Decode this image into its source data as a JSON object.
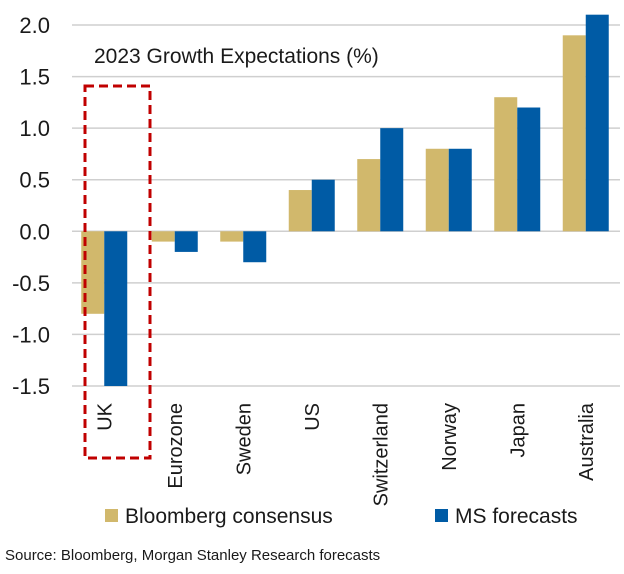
{
  "chart_data": {
    "type": "bar",
    "title": "2023 Growth Expectations (%)",
    "categories": [
      "UK",
      "Eurozone",
      "Sweden",
      "US",
      "Switzerland",
      "Norway",
      "Japan",
      "Australia"
    ],
    "series": [
      {
        "name": "Bloomberg consensus",
        "color": "#D1B86C",
        "values": [
          -0.8,
          -0.1,
          -0.1,
          0.4,
          0.7,
          0.8,
          1.3,
          1.9
        ]
      },
      {
        "name": "MS forecasts",
        "color": "#005BA5",
        "values": [
          -1.5,
          -0.2,
          -0.3,
          0.5,
          1.0,
          0.8,
          1.2,
          2.1
        ]
      }
    ],
    "ylim": [
      -1.5,
      2.0
    ],
    "yticks": [
      "2.0",
      "1.5",
      "1.0",
      "0.5",
      "0.0",
      "-0.5",
      "-1.0",
      "-1.5"
    ],
    "grid": true,
    "legend_position": "bottom",
    "highlight": {
      "category": "UK",
      "style": "dashed-box",
      "color": "#C00000"
    },
    "source": "Source: Bloomberg, Morgan Stanley Research forecasts"
  }
}
